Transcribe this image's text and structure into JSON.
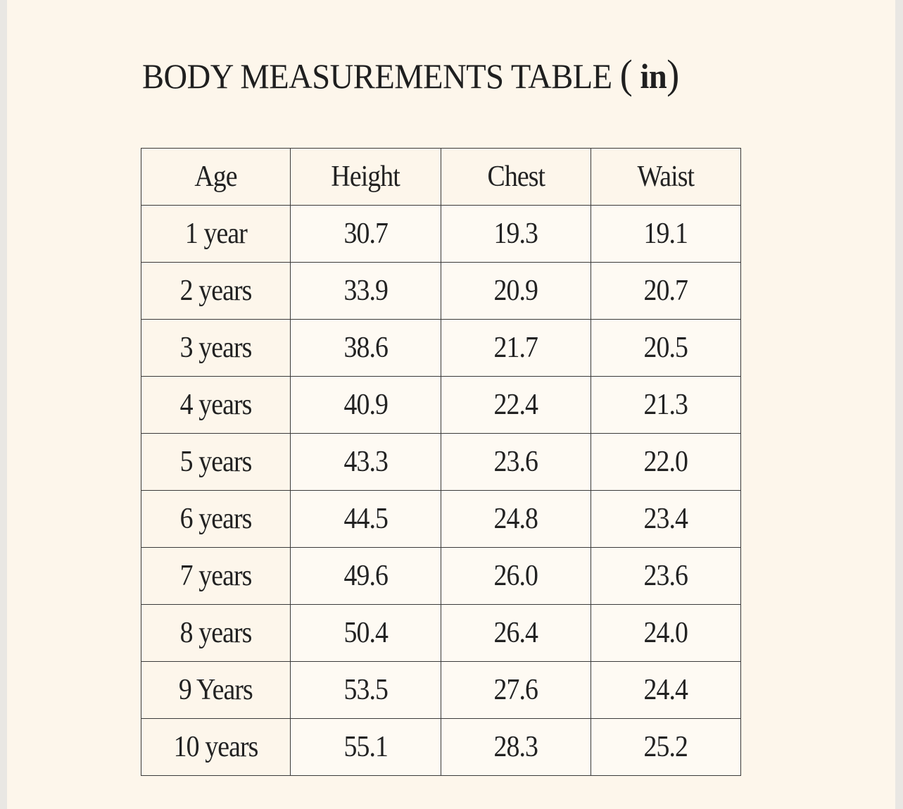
{
  "title": {
    "text": "BODY MEASUREMENTS TABLE",
    "unit_open": "(",
    "unit": "in",
    "unit_close": ")"
  },
  "table": {
    "headers": [
      "Age",
      "Height",
      "Chest",
      "Waist"
    ],
    "rows": [
      [
        "1 year",
        "30.7",
        "19.3",
        "19.1"
      ],
      [
        "2 years",
        "33.9",
        "20.9",
        "20.7"
      ],
      [
        "3 years",
        "38.6",
        "21.7",
        "20.5"
      ],
      [
        "4 years",
        "40.9",
        "22.4",
        "21.3"
      ],
      [
        "5 years",
        "43.3",
        "23.6",
        "22.0"
      ],
      [
        "6 years",
        "44.5",
        "24.8",
        "23.4"
      ],
      [
        "7 years",
        "49.6",
        "26.0",
        "23.6"
      ],
      [
        "8 years",
        "50.4",
        "26.4",
        "24.0"
      ],
      [
        "9 Years",
        "53.5",
        "27.6",
        "24.4"
      ],
      [
        "10 years",
        "55.1",
        "28.3",
        "25.2"
      ]
    ]
  }
}
